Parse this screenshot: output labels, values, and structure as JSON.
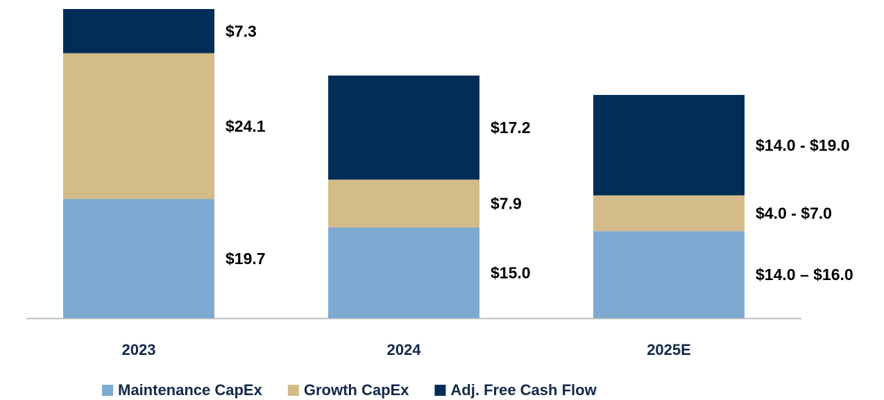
{
  "chart_data": {
    "type": "stacked_bar",
    "categories": [
      "2023",
      "2024",
      "2025E"
    ],
    "series": [
      {
        "name": "Maintenance CapEx",
        "color": "#7eaad2",
        "values": [
          19.7,
          15.0,
          14.4
        ],
        "value_labels": [
          "$19.7",
          "$15.0",
          "$14.0 – $16.0"
        ]
      },
      {
        "name": "Growth CapEx",
        "color": "#d4bb8a",
        "values": [
          24.1,
          7.9,
          5.9
        ],
        "value_labels": [
          "$24.1",
          "$7.9",
          "$4.0 - $7.0"
        ]
      },
      {
        "name": "Adj. Free Cash Flow",
        "color": "#012e57",
        "values": [
          7.3,
          17.2,
          16.6
        ],
        "value_labels": [
          "$7.3",
          "$17.2",
          "$14.0 - $19.0"
        ]
      }
    ]
  }
}
